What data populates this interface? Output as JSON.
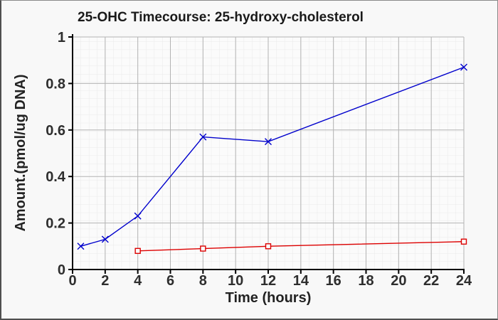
{
  "window": {
    "background": "#f8f8f8",
    "plot_background": "#fbfbfb",
    "border_color": "#4f4f4f"
  },
  "chart_data": {
    "type": "line",
    "title": "25-OHC Timecourse: 25-hydroxy-cholesterol",
    "xlabel": "Time (hours)",
    "ylabel": "Amount.(pmol/ug DNA)",
    "xlim": [
      0,
      24
    ],
    "ylim": [
      0,
      1
    ],
    "x_ticks": [
      0,
      2,
      4,
      6,
      8,
      10,
      12,
      14,
      16,
      18,
      20,
      22,
      24
    ],
    "x_tick_labels": [
      "0",
      "2",
      "4",
      "6",
      "8",
      "10",
      "12",
      "14",
      "16",
      "18",
      "20",
      "22",
      "24"
    ],
    "y_ticks": [
      0,
      0.2,
      0.4,
      0.6,
      0.8,
      1
    ],
    "y_tick_labels": [
      "0",
      "0.2",
      "0.4",
      "0.6",
      "0.8",
      "1"
    ],
    "grid": "major and fine minor grid, no legend",
    "colors": {
      "axis": "#000000",
      "major_grid": "#b3b3b3",
      "minor_grid": "#eaeaea",
      "tick_text": "#2e2e2e"
    },
    "series": [
      {
        "name": "blue-x-series",
        "marker": "x-cross",
        "color": "#0000cc",
        "x": [
          0.5,
          2,
          4,
          8,
          12,
          24
        ],
        "y": [
          0.1,
          0.13,
          0.23,
          0.57,
          0.55,
          0.87
        ]
      },
      {
        "name": "red-square-series",
        "marker": "open-square",
        "color": "#dd0000",
        "x": [
          4,
          8,
          12,
          24
        ],
        "y": [
          0.08,
          0.09,
          0.1,
          0.12
        ]
      }
    ]
  }
}
